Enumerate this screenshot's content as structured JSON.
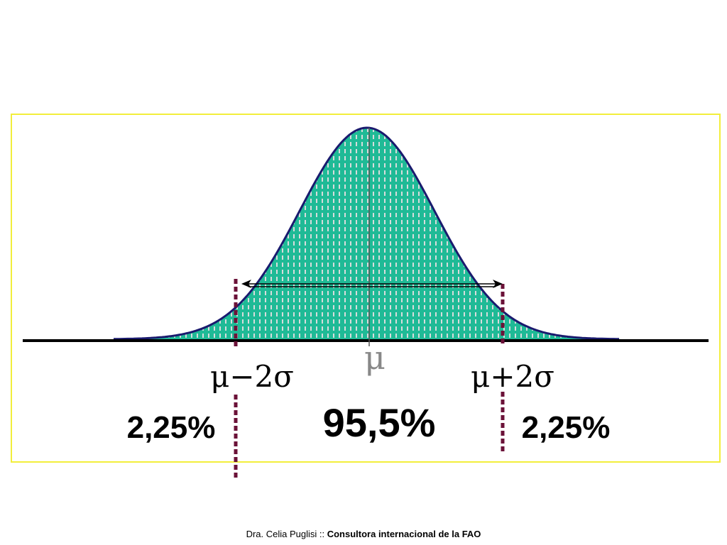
{
  "labels": {
    "mu": "μ",
    "minus_two_sigma": "μ−2σ",
    "plus_two_sigma": "μ+2σ",
    "left_tail_pct": "2,25%",
    "center_pct": "95,5%",
    "right_tail_pct": "2,25%"
  },
  "footer": {
    "author": "Dra. Celia Puglisi",
    "separator": " :: ",
    "affiliation": "Consultora internacional de la FAO"
  },
  "colors": {
    "fill": "#1fba96",
    "stripe": "#d8dcdc",
    "outline": "#1a1a6e",
    "marker": "#6b1238",
    "frame": "#f2ee3c",
    "mu_label": "#888888"
  }
}
